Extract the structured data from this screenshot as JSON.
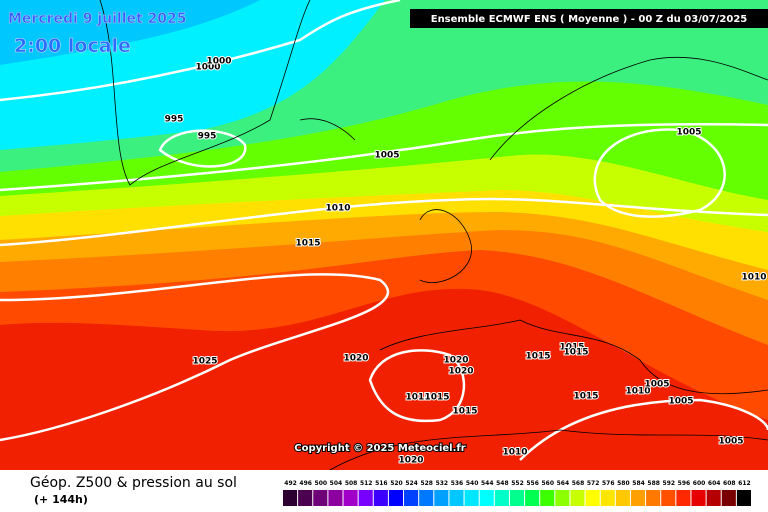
{
  "header": {
    "date": "Mercredi 9 juillet 2025",
    "time": "2:00 locale",
    "model": "Ensemble ECMWF ENS  ( Moyenne )  -  00 Z du 03/07/2025"
  },
  "isobars": [
    1000,
    1000,
    995,
    995,
    1005,
    1005,
    1010,
    1015,
    1010,
    1025,
    1020,
    1020,
    1020,
    1015,
    1015,
    1015,
    1015,
    1015,
    1015,
    1015,
    1010,
    1005,
    1005,
    1005,
    1020,
    1010
  ],
  "copyright": "Copyright © 2025 Meteociel.fr",
  "footer": {
    "title": "Géop. Z500 & pression au sol",
    "lead": "(+ 144h)"
  },
  "legend": {
    "values": [
      492,
      496,
      500,
      504,
      508,
      512,
      516,
      520,
      524,
      528,
      532,
      536,
      540,
      544,
      548,
      552,
      556,
      560,
      564,
      568,
      572,
      576,
      580,
      584,
      588,
      592,
      596,
      600,
      604,
      608,
      612
    ],
    "colors": [
      "#2d0032",
      "#4b0050",
      "#6e0078",
      "#8c00a0",
      "#a000c8",
      "#7800ff",
      "#3c00ff",
      "#0000ff",
      "#0040ff",
      "#0078ff",
      "#00a0ff",
      "#00c8ff",
      "#00e6ff",
      "#00ffff",
      "#00ffc8",
      "#00ff8c",
      "#00ff50",
      "#3cff00",
      "#8cff00",
      "#c8ff00",
      "#ffff00",
      "#ffe600",
      "#ffc800",
      "#ffa000",
      "#ff7800",
      "#ff5000",
      "#ff2800",
      "#e60000",
      "#b40000",
      "#780000",
      "#000000"
    ]
  }
}
